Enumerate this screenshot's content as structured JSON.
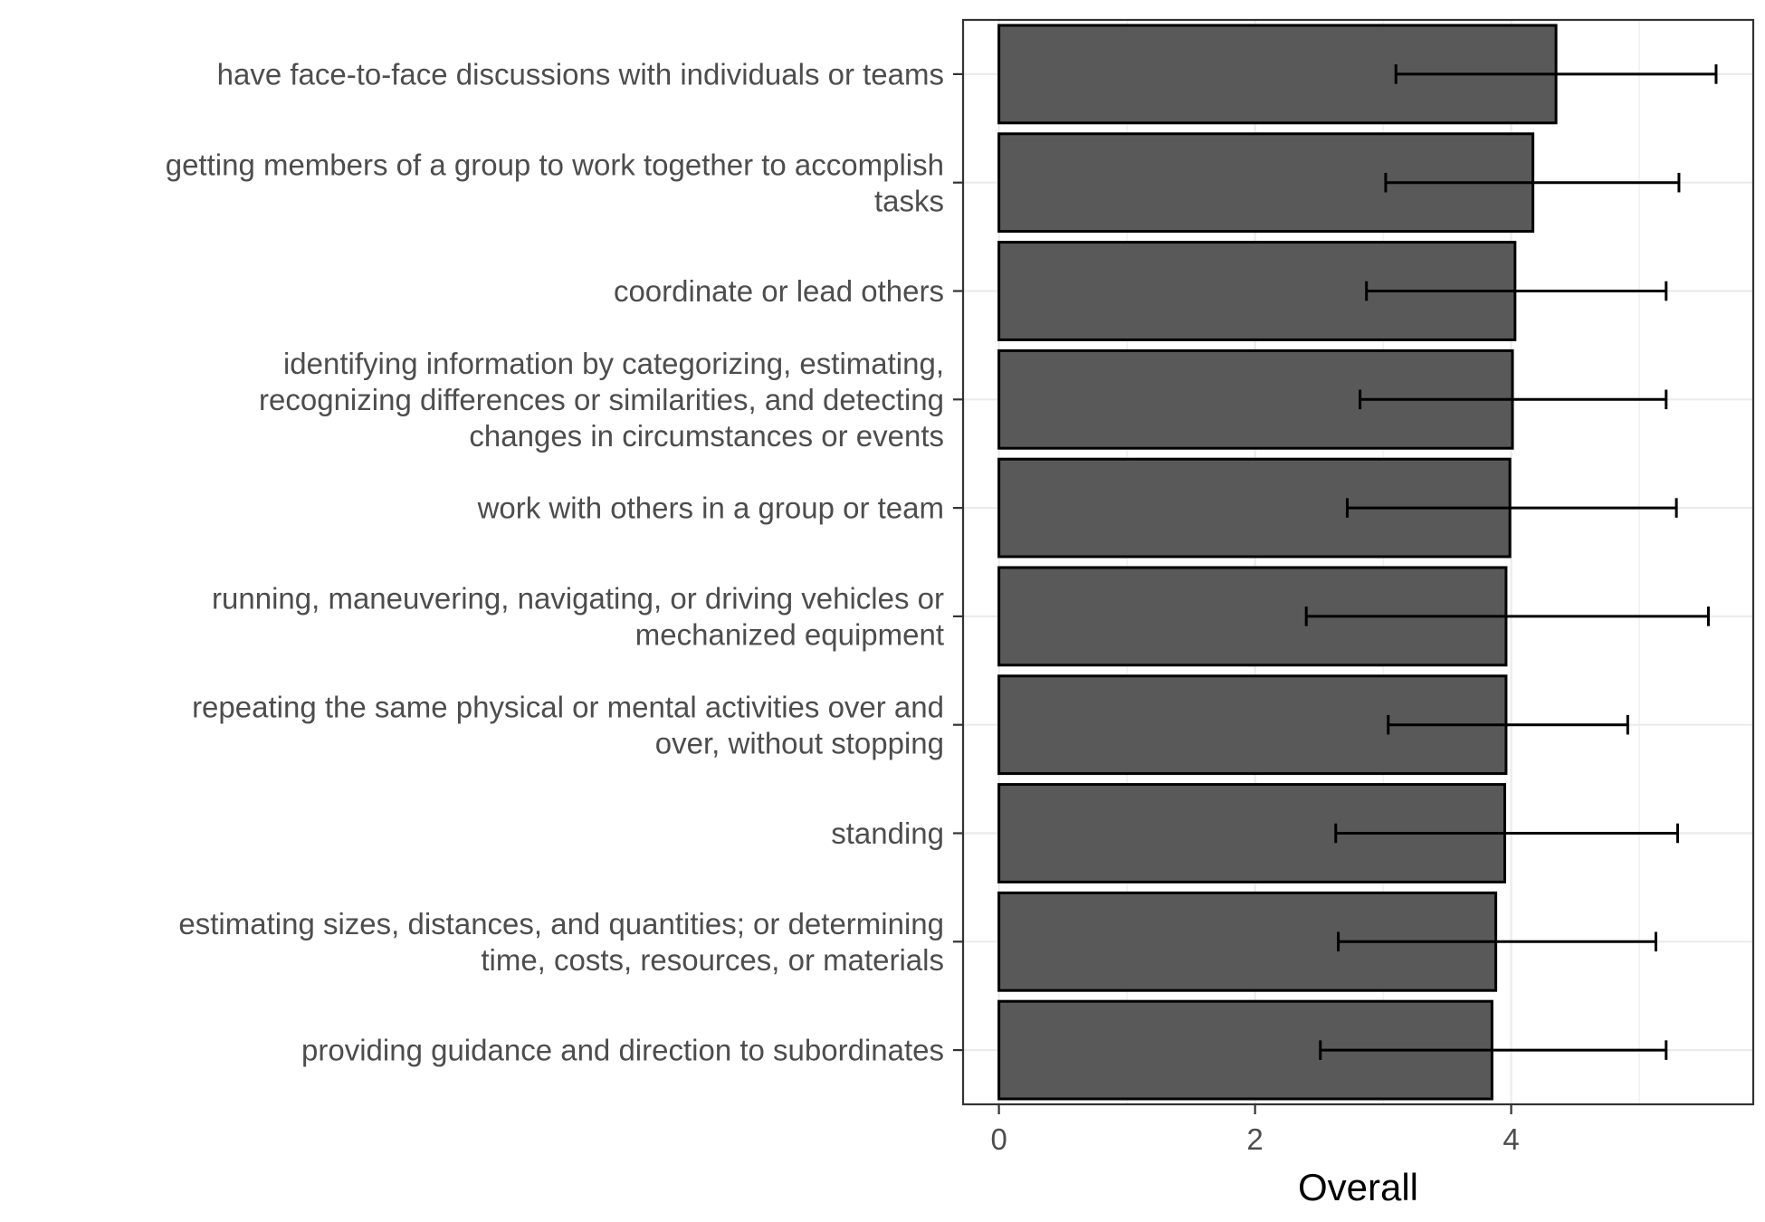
{
  "chart_data": {
    "type": "bar",
    "orientation": "horizontal",
    "title": "",
    "xlabel": "Overall",
    "ylabel": "",
    "categories": [
      [
        "have face-to-face discussions with individuals or teams"
      ],
      [
        "getting members of a group to work together to accomplish",
        "tasks"
      ],
      [
        "coordinate or lead others"
      ],
      [
        "identifying information by categorizing, estimating,",
        "recognizing differences or similarities, and detecting",
        "changes in circumstances or events"
      ],
      [
        "work with others in a group or team"
      ],
      [
        "running, maneuvering, navigating, or driving vehicles or",
        "mechanized equipment"
      ],
      [
        "repeating the same physical or mental activities over and",
        "over, without stopping"
      ],
      [
        "standing"
      ],
      [
        "estimating sizes, distances, and quantities; or determining",
        "time, costs, resources, or materials"
      ],
      [
        "providing guidance and direction to subordinates"
      ]
    ],
    "values": [
      4.35,
      4.17,
      4.03,
      4.01,
      3.99,
      3.96,
      3.96,
      3.95,
      3.88,
      3.85
    ],
    "error_low": [
      3.1,
      3.02,
      2.87,
      2.82,
      2.72,
      2.4,
      3.04,
      2.63,
      2.65,
      2.51
    ],
    "error_high": [
      5.6,
      5.31,
      5.21,
      5.21,
      5.29,
      5.54,
      4.91,
      5.3,
      5.13,
      5.21
    ],
    "xlim": [
      -0.28,
      5.89
    ],
    "xticks": [
      0,
      2,
      4
    ],
    "grid": true,
    "legend": "none",
    "bar_fill": "#595959",
    "bar_stroke": "#000000",
    "grid_color": "#ebebeb",
    "text_color": "#4d4d4d"
  }
}
